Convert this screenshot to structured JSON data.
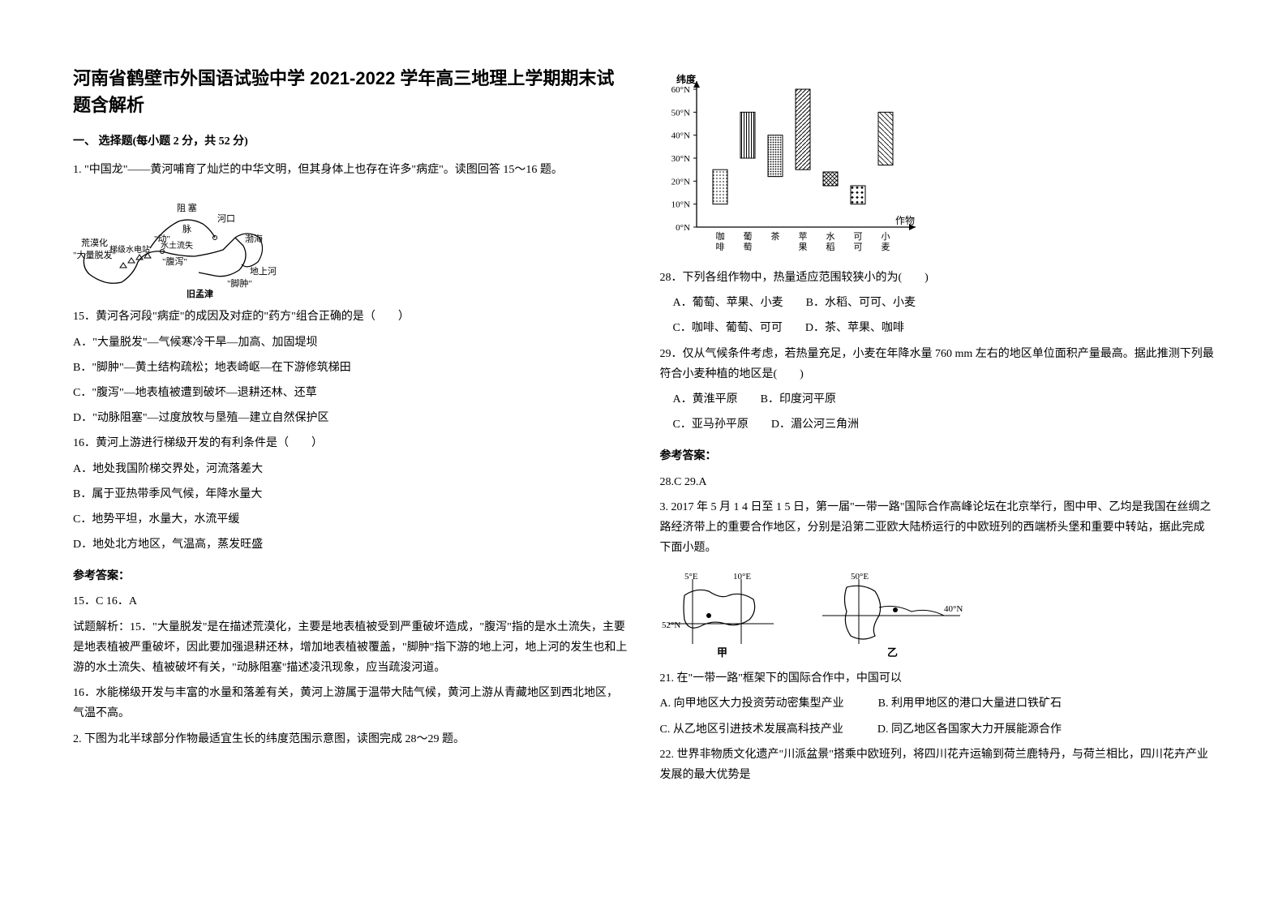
{
  "title": "河南省鹤壁市外国语试验中学 2021-2022 学年高三地理上学期期末试题含解析",
  "section1_header": "一、 选择题(每小题 2 分，共 52 分)",
  "q1": {
    "intro": "1. \"中国龙\"——黄河哺育了灿烂的中华文明，但其身体上也存在许多\"病症\"。读图回答 15～16 题。",
    "map_labels": {
      "l1": "阻 塞",
      "l2": "河口",
      "l3": "脉",
      "l4": "\"动\"",
      "l5": "梯级水电站",
      "l6": "水土流失",
      "l7": "荒漠化",
      "l8": "\"大量脱发\"",
      "l9": "\"腹泻\"",
      "l10": "渤海",
      "l11": "地上河",
      "l12": "\"脚肿\"",
      "l13": "旧孟津"
    },
    "q15": {
      "stem": "15．黄河各河段\"病症\"的成因及对症的\"药方\"组合正确的是（　　）",
      "A": "A．\"大量脱发\"—气候寒冷干旱—加高、加固堤坝",
      "B": "B．\"脚肿\"—黄土结构疏松；地表崎岖—在下游修筑梯田",
      "C": "C．\"腹泻\"—地表植被遭到破坏—退耕还林、还草",
      "D": "D．\"动脉阻塞\"—过度放牧与垦殖—建立自然保护区"
    },
    "q16": {
      "stem": "16．黄河上游进行梯级开发的有利条件是（　　）",
      "A": "A．地处我国阶梯交界处，河流落差大",
      "B": "B．属于亚热带季风气候，年降水量大",
      "C": "C．地势平坦，水量大，水流平缓",
      "D": "D．地处北方地区，气温高，蒸发旺盛"
    },
    "answer_label": "参考答案：",
    "answer": "15．C  16．A",
    "exp1": "试题解析：15．\"大量脱发\"是在描述荒漠化，主要是地表植被受到严重破坏造成，\"腹泻\"指的是水土流失，主要是地表植被严重破坏，因此要加强退耕还林，增加地表植被覆盖，\"脚肿\"指下游的地上河，地上河的发生也和上游的水土流失、植被破坏有关，\"动脉阻塞\"描述凌汛现象，应当疏浚河道。",
    "exp2": "16．水能梯级开发与丰富的水量和落差有关，黄河上游属于温带大陆气候，黄河上游从青藏地区到西北地区，气温不高。"
  },
  "q2": {
    "intro": "2. 下图为北半球部分作物最适宜生长的纬度范围示意图，读图完成 28～29 题。",
    "chart": {
      "type": "bar",
      "y_label": "纬度",
      "y_ticks": [
        "0°N",
        "10°N",
        "20°N",
        "30°N",
        "40°N",
        "50°N",
        "60°N"
      ],
      "x_label": "作物",
      "categories": [
        "咖啡",
        "葡萄",
        "茶",
        "苹果",
        "水稻",
        "可可",
        "小麦"
      ],
      "bars": [
        {
          "name": "咖啡",
          "low": 10,
          "high": 25,
          "pattern": "dots"
        },
        {
          "name": "葡萄",
          "low": 30,
          "high": 50,
          "pattern": "vlines"
        },
        {
          "name": "茶",
          "low": 22,
          "high": 40,
          "pattern": "dots-dense"
        },
        {
          "name": "苹果",
          "low": 25,
          "high": 60,
          "pattern": "diag"
        },
        {
          "name": "水稻",
          "low": 18,
          "high": 24,
          "pattern": "cross"
        },
        {
          "name": "可可",
          "low": 10,
          "high": 18,
          "pattern": "diamonds"
        },
        {
          "name": "小麦",
          "low": 27,
          "high": 50,
          "pattern": "lightdiag"
        }
      ],
      "axis_color": "#000000",
      "grid_color": "#000000",
      "bg_color": "#ffffff"
    },
    "q28": {
      "stem": "28．下列各组作物中，热量适应范围较狭小的为(　　)",
      "A": "A．葡萄、苹果、小麦",
      "B": "B．水稻、可可、小麦",
      "C": "C．咖啡、葡萄、可可",
      "D": "D．茶、苹果、咖啡"
    },
    "q29": {
      "stem": "29．仅从气候条件考虑，若热量充足，小麦在年降水量 760 mm 左右的地区单位面积产量最高。据此推测下列最符合小麦种植的地区是(　　)",
      "A": "A．黄淮平原",
      "B": "B．印度河平原",
      "C": "C．亚马孙平原",
      "D": "D．湄公河三角洲"
    },
    "answer_label": "参考答案：",
    "answer": "28.C   29.A"
  },
  "q3": {
    "intro": "3. 2017 年 5 月 1 4 日至 1 5 日，第一届\"一带一路\"国际合作高峰论坛在北京举行，图中甲、乙均是我国在丝绸之路经济带上的重要合作地区，分别是沿第二亚欧大陆桥运行的中欧班列的西端桥头堡和重要中转站，据此完成下面小题。",
    "map_labels": {
      "lon1": "5°E",
      "lon2": "10°E",
      "lon3": "50°E",
      "lat1": "52°N",
      "lat2": "40°N",
      "place1": "甲",
      "place2": "乙"
    },
    "q21": {
      "stem": "21. 在\"一带一路\"框架下的国际合作中，中国可以",
      "A": "A. 向甲地区大力投资劳动密集型产业",
      "B": "B. 利用甲地区的港口大量进口铁矿石",
      "C": "C. 从乙地区引进技术发展高科技产业",
      "D": "D. 同乙地区各国家大力开展能源合作"
    },
    "q22": {
      "stem": "22. 世界非物质文化遗产\"川派盆景\"搭乘中欧班列，将四川花卉运输到荷兰鹿特丹，与荷兰相比，四川花卉产业发展的最大优势是"
    }
  }
}
